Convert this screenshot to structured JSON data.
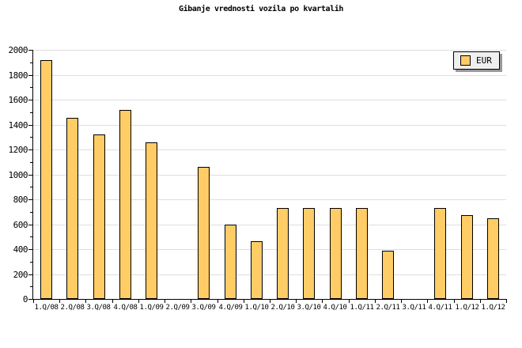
{
  "title": "Gibanje vrednosti vozila po kvartalih",
  "legend": {
    "label": "EUR"
  },
  "colors": {
    "background": "#FFFFFF",
    "bar_fill": "#FFCC66",
    "bar_border": "#000000",
    "grid": "#DEDEDE",
    "axis": "#000000",
    "legend_bg": "#EFEFEF",
    "legend_shadow": "#999999"
  },
  "chart_data": {
    "type": "bar",
    "title": "Gibanje vrednosti vozila po kvartalih",
    "categories": [
      "1.Q/08",
      "2.Q/08",
      "3.Q/08",
      "4.Q/08",
      "1.Q/09",
      "2.Q/09",
      "3.Q/09",
      "4.Q/09",
      "1.Q/10",
      "2.Q/10",
      "3.Q/10",
      "4.Q/10",
      "1.Q/11",
      "2.Q/11",
      "3.Q/11",
      "4.Q/11",
      "1.Q/12",
      "1.Q/12"
    ],
    "series": [
      {
        "name": "EUR",
        "values": [
          1920,
          1455,
          1320,
          1520,
          1260,
          0,
          1060,
          600,
          465,
          730,
          730,
          730,
          730,
          390,
          0,
          730,
          670,
          650
        ]
      }
    ],
    "xlabel": "",
    "ylabel": "",
    "ylim": [
      0,
      2000
    ],
    "ytick_major": 200,
    "ytick_minor": 100,
    "yticks": [
      0,
      200,
      400,
      600,
      800,
      1000,
      1200,
      1400,
      1600,
      1800,
      2000
    ],
    "grid": "horizontal-major",
    "legend_position": "top-right"
  }
}
